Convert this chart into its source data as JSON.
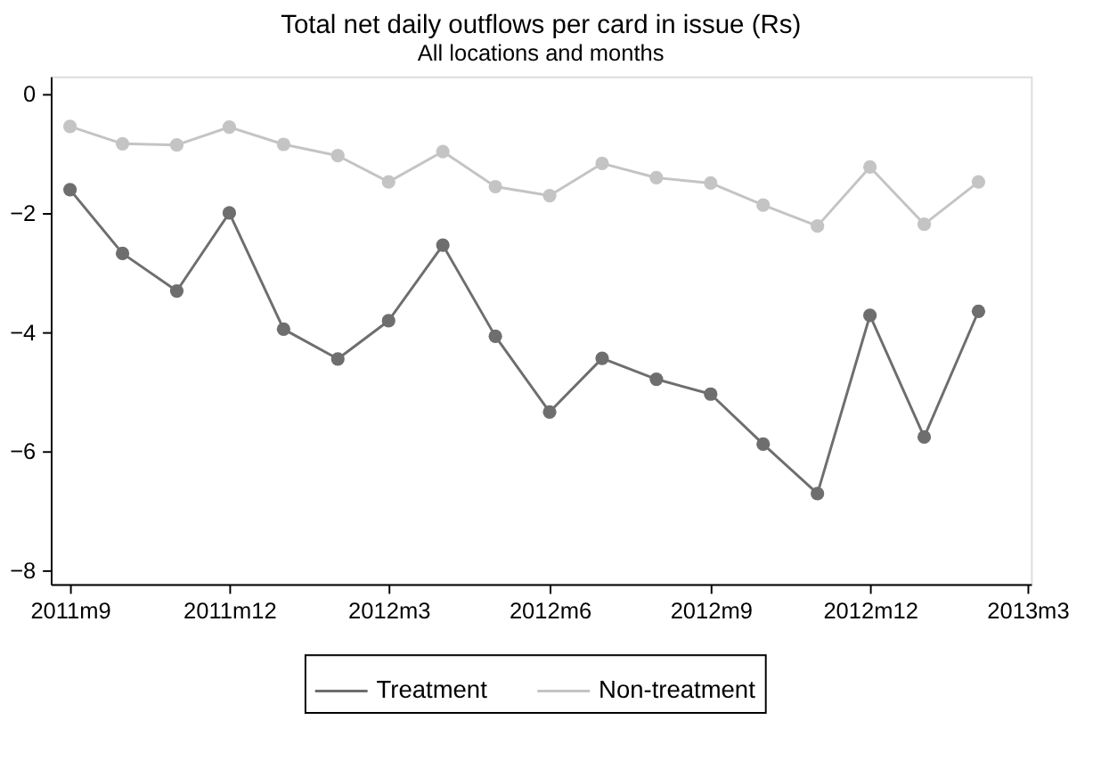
{
  "chart_data": {
    "type": "line",
    "title": "Total net daily outflows per card in issue (Rs)",
    "subtitle": "All locations and months",
    "x": [
      "2011-09",
      "2011-10",
      "2011-11",
      "2011-12",
      "2012-01",
      "2012-02",
      "2012-03",
      "2012-04",
      "2012-05",
      "2012-06",
      "2012-07",
      "2012-08",
      "2012-09",
      "2012-10",
      "2012-11",
      "2012-12",
      "2013-01",
      "2013-02"
    ],
    "xlim": [
      "2011-08-21",
      "2013-03-03"
    ],
    "xticks": [
      {
        "value": "2011-09",
        "label": "2011m9"
      },
      {
        "value": "2011-12",
        "label": "2011m12"
      },
      {
        "value": "2012-03",
        "label": "2012m3"
      },
      {
        "value": "2012-06",
        "label": "2012m6"
      },
      {
        "value": "2012-09",
        "label": "2012m9"
      },
      {
        "value": "2012-12",
        "label": "2012m12"
      },
      {
        "value": "2013-03",
        "label": "2013m3"
      }
    ],
    "ylim": [
      -8.23,
      0.29
    ],
    "yticks": [
      0,
      -2,
      -4,
      -6,
      -8
    ],
    "series": [
      {
        "name": "Treatment",
        "color": "#6e6e6e",
        "values": [
          -1.61,
          -2.68,
          -3.31,
          -2.0,
          -3.95,
          -4.45,
          -3.81,
          -2.54,
          -4.07,
          -5.34,
          -4.44,
          -4.79,
          -5.04,
          -5.88,
          -6.71,
          -3.72,
          -5.76,
          -3.65
        ]
      },
      {
        "name": "Non-treatment",
        "color": "#c4c4c4",
        "values": [
          -0.55,
          -0.84,
          -0.86,
          -0.56,
          -0.85,
          -1.04,
          -1.48,
          -0.97,
          -1.56,
          -1.71,
          -1.17,
          -1.41,
          -1.5,
          -1.87,
          -2.22,
          -1.23,
          -2.19,
          -1.48
        ]
      }
    ],
    "legend": "bottom",
    "marker": "circle",
    "line_style": "solid",
    "grid": false
  }
}
